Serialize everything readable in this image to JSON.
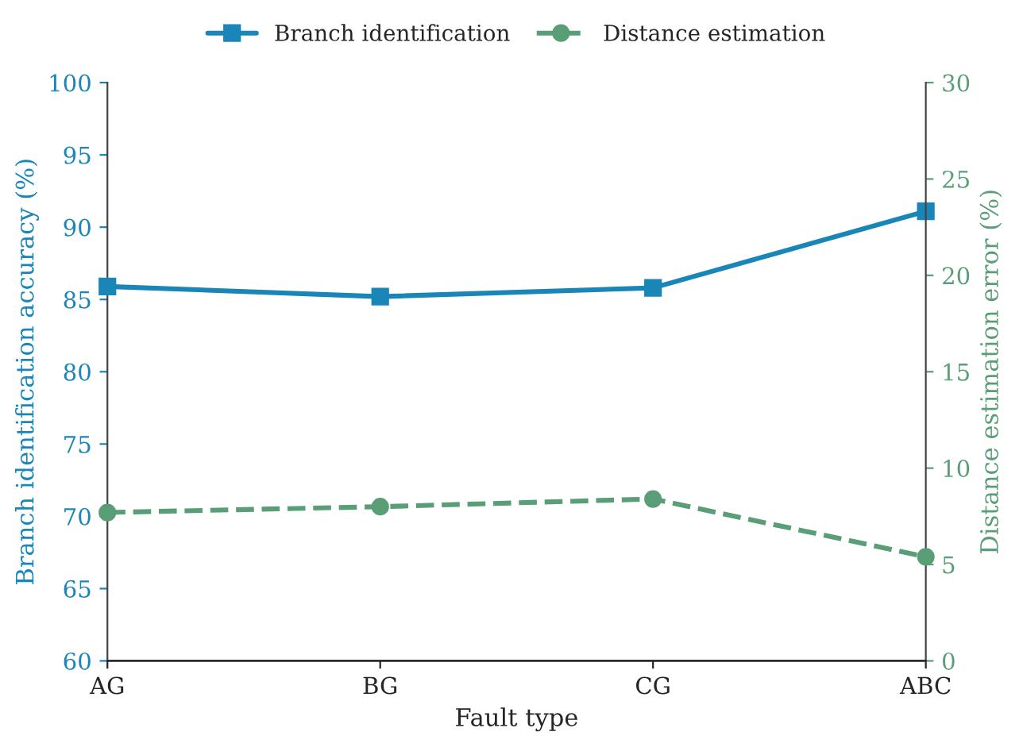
{
  "chart_data": {
    "type": "line",
    "xlabel": "Fault type",
    "ylabel": "Branch identification accuracy (%)",
    "y2label": "Distance estimation error (%)",
    "categories": [
      "AG",
      "BG",
      "CG",
      "ABC"
    ],
    "series": [
      {
        "name": "Branch identification",
        "color": "#1a86b8",
        "values": [
          85.9,
          85.2,
          85.8,
          91.1
        ],
        "marker": "square",
        "line_style": "solid"
      },
      {
        "name": "Distance estimation",
        "color": "#5a9e78",
        "values": [
          7.7,
          8.0,
          8.4,
          5.4
        ],
        "axis": "y2",
        "marker": "circle",
        "line_style": "dashed"
      }
    ],
    "ylim": [
      60,
      100
    ],
    "yticks": [
      60,
      65,
      70,
      75,
      80,
      85,
      90,
      95,
      100
    ],
    "y2lim": [
      0,
      30
    ],
    "y2ticks": [
      0,
      5,
      10,
      15,
      20,
      25,
      30
    ],
    "grid": false,
    "legend": "top"
  }
}
